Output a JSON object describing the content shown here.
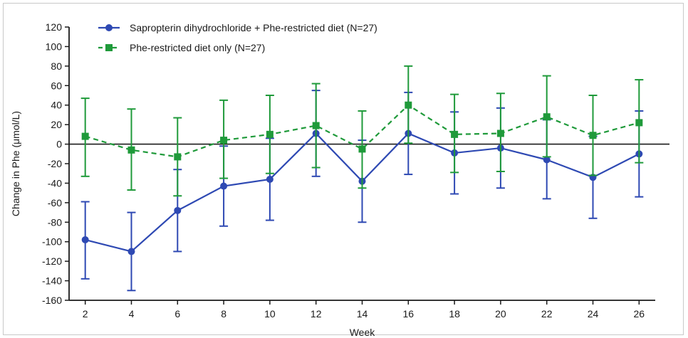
{
  "chart_data": {
    "type": "line",
    "title": "",
    "xlabel": "Week",
    "ylabel": "Change in Phe (μmol/L)",
    "x": [
      2,
      4,
      6,
      8,
      10,
      12,
      14,
      16,
      18,
      20,
      22,
      24,
      26
    ],
    "xlim": [
      1.3,
      26.7
    ],
    "ylim": [
      -160,
      120
    ],
    "yticks": [
      120,
      100,
      80,
      60,
      40,
      20,
      0,
      -20,
      -40,
      -60,
      -80,
      -100,
      -120,
      -140,
      -160
    ],
    "grid": false,
    "zero_line": true,
    "legend_position": "top-left",
    "series": [
      {
        "name": "Sapropterin dihydrochloride + Phe-restricted diet (N=27)",
        "color": "#2e49b3",
        "marker": "circle",
        "line_style": "solid",
        "values": [
          -98,
          -110,
          -68,
          -43,
          -36,
          11,
          -38,
          11,
          -9,
          -4,
          -16,
          -34,
          -10
        ],
        "error_low": [
          -138,
          -150,
          -110,
          -84,
          -78,
          -33,
          -80,
          -31,
          -51,
          -45,
          -56,
          -76,
          -54
        ],
        "error_high": [
          -59,
          -70,
          -26,
          -2,
          6,
          55,
          4,
          53,
          33,
          37,
          25,
          8,
          34
        ]
      },
      {
        "name": "Phe-restricted diet only (N=27)",
        "color": "#1f9a3a",
        "marker": "square",
        "line_style": "dashed",
        "values": [
          8,
          -6,
          -13,
          4,
          10,
          19,
          -5,
          40,
          10,
          11,
          28,
          9,
          22
        ],
        "error_low": [
          -33,
          -47,
          -53,
          -35,
          -30,
          -24,
          -45,
          1,
          -29,
          -28,
          -13,
          -32,
          -19
        ],
        "error_high": [
          47,
          36,
          27,
          45,
          50,
          62,
          34,
          80,
          51,
          52,
          70,
          50,
          66
        ]
      }
    ]
  }
}
